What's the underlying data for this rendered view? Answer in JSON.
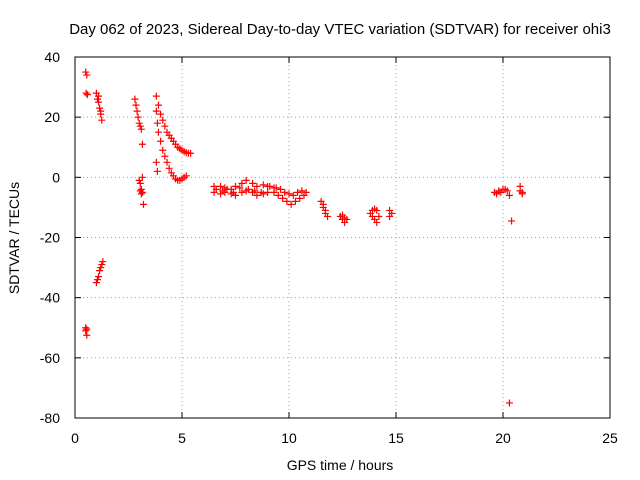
{
  "chart_data": {
    "type": "scatter",
    "title": "Day 062 of 2023, Sidereal Day-to-day VTEC variation (SDTVAR) for receiver ohi3",
    "xlabel": "GPS time / hours",
    "ylabel": "SDTVAR / TECUs",
    "xlim": [
      0,
      25
    ],
    "ylim": [
      -80,
      40
    ],
    "xticks": [
      0,
      5,
      10,
      15,
      20,
      25
    ],
    "yticks": [
      -80,
      -60,
      -40,
      -20,
      0,
      20,
      40
    ],
    "grid": true,
    "marker": "plus",
    "series": [
      {
        "name": "SDTVAR",
        "color": "#ff0000",
        "x": [
          0.5,
          0.55,
          0.52,
          0.58,
          0.5,
          0.55,
          1.0,
          1.05,
          1.1,
          1.15,
          1.2,
          1.25,
          1.1,
          1.2,
          1.0,
          1.05,
          1.1,
          1.15,
          1.2,
          1.25,
          1.3,
          0.5,
          0.55,
          2.8,
          2.85,
          2.9,
          2.95,
          3.0,
          3.05,
          3.1,
          3.15,
          3.0,
          3.05,
          3.1,
          3.15,
          3.2,
          3.05,
          3.1,
          3.15,
          3.8,
          3.9,
          4.0,
          4.1,
          4.2,
          4.3,
          4.4,
          4.5,
          4.6,
          4.7,
          4.8,
          4.9,
          5.0,
          5.1,
          5.2,
          5.3,
          5.4,
          3.8,
          3.85,
          3.9,
          4.0,
          4.1,
          4.2,
          4.3,
          4.4,
          4.5,
          4.6,
          4.7,
          4.8,
          4.9,
          5.0,
          5.1,
          5.2,
          3.8,
          3.85,
          6.5,
          6.8,
          7.0,
          7.3,
          7.5,
          7.8,
          8.0,
          8.3,
          8.5,
          8.8,
          9.0,
          9.3,
          6.5,
          6.8,
          7.0,
          7.3,
          7.5,
          7.8,
          8.0,
          8.3,
          8.5,
          8.8,
          9.0,
          9.3,
          6.6,
          6.9,
          7.1,
          7.4,
          7.7,
          8.1,
          8.4,
          8.7,
          9.1,
          9.4,
          9.5,
          9.7,
          9.9,
          10.1,
          10.3,
          10.5,
          10.7,
          9.6,
          9.8,
          10.0,
          10.2,
          10.4,
          10.6,
          10.8,
          11.5,
          11.6,
          11.7,
          11.8,
          11.6,
          11.7,
          12.4,
          12.5,
          12.6,
          12.7,
          12.5,
          12.6,
          13.8,
          13.9,
          14.0,
          14.1,
          14.2,
          13.9,
          14.0,
          14.1,
          14.7,
          14.8,
          14.7,
          19.6,
          19.8,
          20.0,
          20.2,
          19.7,
          19.9,
          20.1,
          20.3,
          20.4,
          20.3,
          20.8,
          20.9,
          20.8,
          20.9
        ],
        "y": [
          35,
          34,
          28,
          27.5,
          -51,
          -52.5,
          28,
          26,
          25,
          23,
          21,
          19,
          27,
          22,
          -35,
          -34,
          -33,
          -31,
          -30,
          -29,
          -28,
          -50,
          -50.5,
          26,
          24,
          22,
          20,
          18,
          17,
          16,
          11,
          -1,
          -2,
          -4,
          -5,
          -9,
          -4.5,
          -5.5,
          0,
          27,
          24,
          21,
          19,
          17,
          15,
          14,
          13,
          12,
          11,
          10,
          9.5,
          9,
          8.5,
          8.2,
          8,
          8,
          22,
          18,
          15,
          12,
          9,
          7,
          5,
          3,
          1.5,
          0.5,
          -0.5,
          -1,
          -1,
          -0.5,
          0,
          0.5,
          5,
          2,
          -3,
          -3,
          -3.5,
          -4,
          -3,
          -2,
          -1,
          -2,
          -3,
          -2.5,
          -3,
          -3.5,
          -5,
          -5.5,
          -5,
          -5.5,
          -6,
          -5,
          -4.5,
          -5,
          -6,
          -5.5,
          -5,
          -5,
          -4,
          -4.5,
          -4,
          -5,
          -3.5,
          -4,
          -4.5,
          -5,
          -3,
          -3.5,
          -6,
          -7,
          -8,
          -9,
          -8,
          -7,
          -6,
          -4,
          -5,
          -5.5,
          -6,
          -5,
          -4.5,
          -5,
          -8,
          -9,
          -11,
          -13,
          -10,
          -12,
          -13,
          -14,
          -15,
          -14,
          -12.5,
          -13.5,
          -12,
          -13,
          -14,
          -15,
          -13,
          -11,
          -10.5,
          -11,
          -11,
          -12,
          -13,
          -5,
          -4.5,
          -4,
          -4.5,
          -5.5,
          -5,
          -4,
          -6,
          -14.5,
          -75,
          -3,
          -5,
          -4.5,
          -5.5
        ]
      }
    ]
  }
}
